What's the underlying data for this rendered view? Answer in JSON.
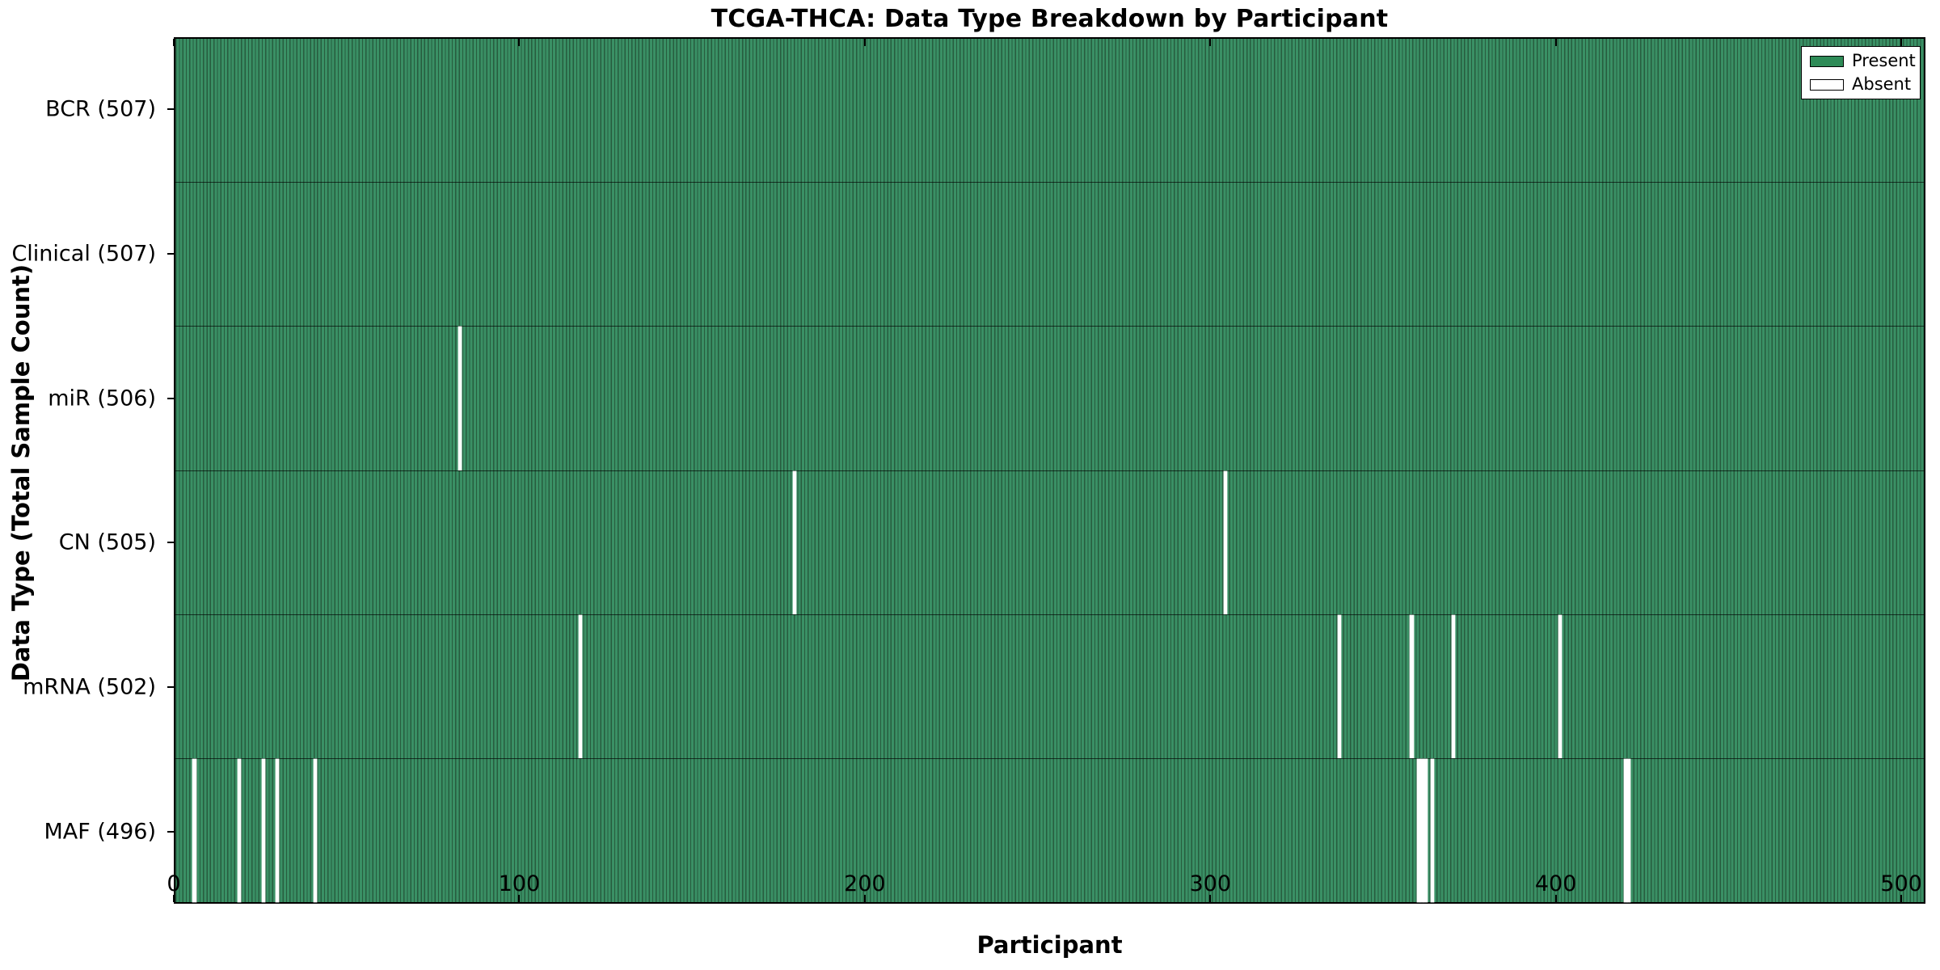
{
  "chart_data": {
    "type": "heatmap",
    "title": "TCGA-THCA: Data Type Breakdown by Participant",
    "xlabel": "Participant",
    "ylabel": "Data Type (Total Sample Count)",
    "x_ticks": [
      0,
      100,
      200,
      300,
      400,
      500
    ],
    "xlim": [
      0,
      507
    ],
    "n_participants": 507,
    "grid": false,
    "colors": {
      "present_fill": "#3a9065",
      "bar_edge": "#275c3e",
      "legend_present": "#2e8b57",
      "absent": "#ffffff",
      "frame": "#000000"
    },
    "legend": {
      "position": "upper right",
      "entries": [
        {
          "label": "Present",
          "color": "#2e8b57"
        },
        {
          "label": "Absent",
          "color": "#ffffff"
        }
      ]
    },
    "rows": [
      {
        "label": "BCR (507)",
        "data_type": "BCR",
        "total": 507,
        "absent_participants": []
      },
      {
        "label": "Clinical (507)",
        "data_type": "Clinical",
        "total": 507,
        "absent_participants": []
      },
      {
        "label": "miR (506)",
        "data_type": "miR",
        "total": 506,
        "absent_participants": [
          82
        ]
      },
      {
        "label": "CN (505)",
        "data_type": "CN",
        "total": 505,
        "absent_participants": [
          179,
          304
        ]
      },
      {
        "label": "mRNA (502)",
        "data_type": "mRNA",
        "total": 502,
        "absent_participants": [
          117,
          337,
          358,
          370,
          401
        ]
      },
      {
        "label": "MAF (496)",
        "data_type": "MAF",
        "total": 496,
        "absent_participants": [
          5,
          18,
          25,
          29,
          40,
          360,
          361,
          362,
          364,
          420,
          421
        ]
      }
    ]
  }
}
